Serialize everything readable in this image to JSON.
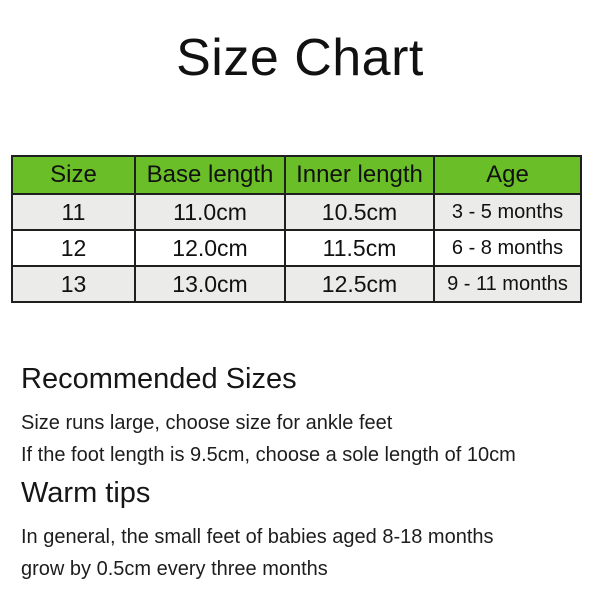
{
  "page": {
    "title": "Size Chart",
    "background_color": "#ffffff"
  },
  "table": {
    "columns": [
      "Size",
      "Base length",
      "Inner length",
      "Age"
    ],
    "rows": [
      [
        "11",
        "11.0cm",
        "10.5cm",
        "3 - 5 months"
      ],
      [
        "12",
        "12.0cm",
        "11.5cm",
        "6 - 8 months"
      ],
      [
        "13",
        "13.0cm",
        "12.5cm",
        "9 - 11 months"
      ]
    ],
    "colors": {
      "header_bg": "#6abe28",
      "row_odd_bg": "#ebebe9",
      "row_even_bg": "#ffffff",
      "border": "#1f1f1f",
      "text": "#111111"
    }
  },
  "sections": [
    {
      "heading": "Recommended Sizes",
      "lines": [
        "Size runs large, choose size for ankle feet",
        "If the foot length is 9.5cm, choose a sole length of 10cm"
      ]
    },
    {
      "heading": "Warm tips",
      "lines": [
        "In general, the small feet of babies aged 8-18 months",
        "grow by 0.5cm every three months"
      ]
    }
  ]
}
